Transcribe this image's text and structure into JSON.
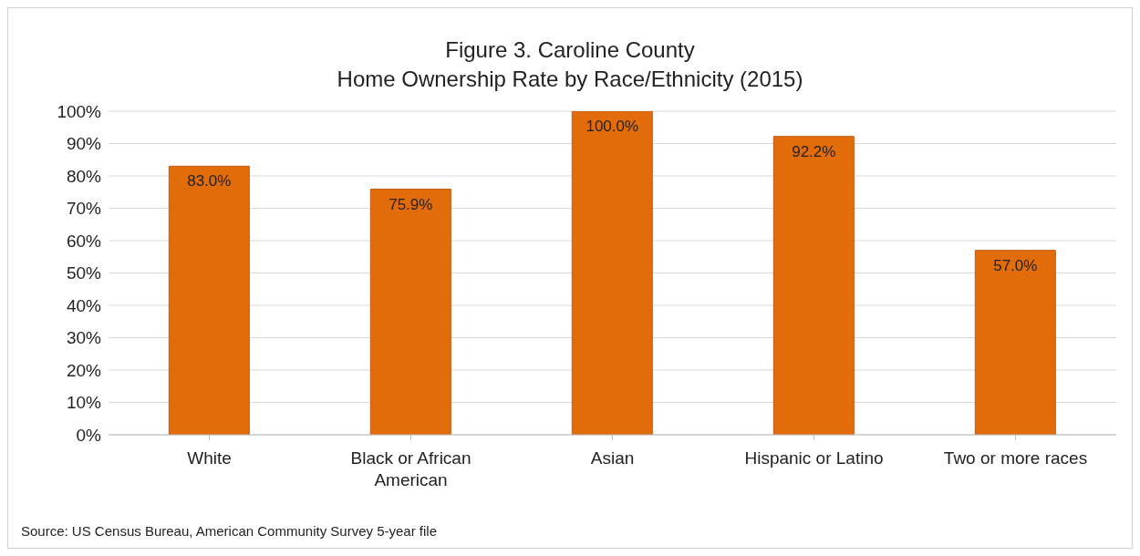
{
  "chart_data": {
    "type": "bar",
    "title": "Figure 3. Caroline County\nHome Ownership Rate by Race/Ethnicity (2015)",
    "categories": [
      "White",
      "Black or African American",
      "Asian",
      "Hispanic or Latino",
      "Two or more races"
    ],
    "values": [
      83.0,
      75.9,
      100.0,
      92.2,
      57.0
    ],
    "value_labels": [
      "83.0%",
      "75.9%",
      "100.0%",
      "92.2%",
      "57.0%"
    ],
    "color": "#e36c0a",
    "ylim": [
      0,
      100
    ],
    "yticks": [
      {
        "value": 0,
        "label": "0%"
      },
      {
        "value": 10,
        "label": "10%"
      },
      {
        "value": 20,
        "label": "20%"
      },
      {
        "value": 30,
        "label": "30%"
      },
      {
        "value": 40,
        "label": "40%"
      },
      {
        "value": 50,
        "label": "50%"
      },
      {
        "value": 60,
        "label": "60%"
      },
      {
        "value": 70,
        "label": "70%"
      },
      {
        "value": 80,
        "label": "80%"
      },
      {
        "value": 90,
        "label": "90%"
      },
      {
        "value": 100,
        "label": "100%"
      }
    ],
    "grid": "y",
    "annotations": [
      "Source: US Census Bureau, American Community Survey 5-year file"
    ]
  }
}
